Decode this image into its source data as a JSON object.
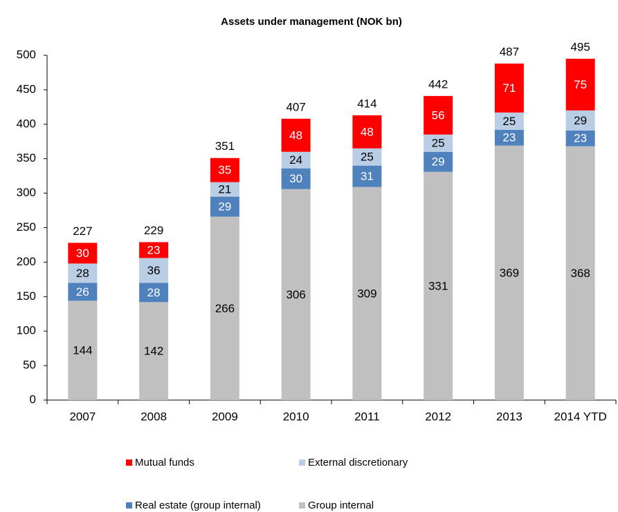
{
  "chart_data": {
    "type": "stacked_bar",
    "title": "Assets under management (NOK bn)",
    "categories": [
      "2007",
      "2008",
      "2009",
      "2010",
      "2011",
      "2012",
      "2013",
      "2014 YTD"
    ],
    "series": [
      {
        "name": "Group internal",
        "color": "#c0c0c0",
        "values": [
          144,
          142,
          266,
          306,
          309,
          331,
          369,
          368
        ]
      },
      {
        "name": "Real estate (group internal)",
        "color": "#4f81bd",
        "values": [
          26,
          28,
          29,
          30,
          31,
          29,
          23,
          23
        ]
      },
      {
        "name": "External discretionary",
        "color": "#b9cde5",
        "values": [
          28,
          36,
          21,
          24,
          25,
          25,
          25,
          29
        ]
      },
      {
        "name": "Mutual funds",
        "color": "#ff0000",
        "values": [
          30,
          23,
          35,
          48,
          48,
          56,
          71,
          75
        ]
      }
    ],
    "totals": [
      227,
      229,
      351,
      407,
      414,
      442,
      487,
      495
    ],
    "ylim": [
      0,
      500
    ],
    "yticks": [
      0,
      50,
      100,
      150,
      200,
      250,
      300,
      350,
      400,
      450,
      500
    ],
    "grid": false
  }
}
